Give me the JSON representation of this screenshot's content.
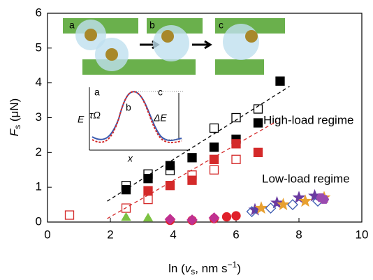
{
  "chart_data": {
    "type": "scatter",
    "xlabel": {
      "pre": "ln (",
      "v": "v",
      "sub": "s",
      "post": ", nm s",
      "sup": "−1",
      "end": ")"
    },
    "ylabel": {
      "f": "F",
      "sub": "s",
      "post": " (μN)"
    },
    "xlim": [
      0,
      10
    ],
    "xticks": [
      0,
      2,
      4,
      6,
      8,
      10
    ],
    "ylim": [
      0,
      6
    ],
    "yticks": [
      0,
      1,
      2,
      3,
      4,
      5,
      6
    ],
    "annotations": [
      "High-load regime",
      "Low-load regime"
    ],
    "cartoon_labels": [
      "a",
      "b",
      "c"
    ],
    "inset_labels": {
      "a": "a",
      "b": "b",
      "c": "c",
      "ylabel": "E",
      "xlabel": "x",
      "tau": "τΩ",
      "delta": "ΔE"
    },
    "series": [
      {
        "marker": "square",
        "filled": true,
        "color": "#000000",
        "x": [
          2.5,
          3.2,
          3.9,
          4.6,
          5.3,
          6.0,
          6.7,
          7.4
        ],
        "values": [
          0.93,
          1.25,
          1.62,
          1.85,
          2.15,
          2.38,
          2.85,
          4.05
        ]
      },
      {
        "marker": "square",
        "filled": false,
        "color": "#000000",
        "x": [
          2.5,
          3.2,
          3.9,
          5.3,
          6.0,
          6.7
        ],
        "values": [
          1.05,
          1.38,
          1.48,
          2.7,
          3.0,
          3.25
        ]
      },
      {
        "marker": "square",
        "filled": true,
        "color": "#d42a2a",
        "x": [
          3.2,
          3.9,
          4.6,
          5.3,
          6.0,
          6.7
        ],
        "values": [
          0.9,
          1.05,
          1.2,
          1.8,
          2.25,
          2.0
        ]
      },
      {
        "marker": "square",
        "filled": false,
        "color": "#d42a2a",
        "x": [
          0.7,
          2.5,
          3.2,
          4.6,
          5.3,
          6.0
        ],
        "values": [
          0.2,
          0.4,
          0.65,
          1.35,
          1.5,
          1.8
        ]
      },
      {
        "marker": "triangle",
        "filled": true,
        "color": "#7cc242",
        "x": [
          2.5,
          3.2
        ],
        "values": [
          0.12,
          0.1
        ]
      },
      {
        "marker": "circle",
        "filled": true,
        "color": "#e0202a",
        "x": [
          3.9,
          4.6,
          5.3,
          5.7,
          6.0
        ],
        "values": [
          0.05,
          0.05,
          0.1,
          0.15,
          0.18
        ]
      },
      {
        "marker": "diamond",
        "filled": true,
        "color": "#c03090",
        "x": [
          3.9,
          4.6,
          5.3
        ],
        "values": [
          0.08,
          0.06,
          0.12
        ]
      },
      {
        "marker": "star",
        "filled": true,
        "color": "#6a3aa0",
        "x": [
          6.6,
          7.3,
          8.0,
          8.5
        ],
        "values": [
          0.35,
          0.55,
          0.7,
          0.75
        ]
      },
      {
        "marker": "star",
        "filled": true,
        "color": "#e8a030",
        "x": [
          6.8,
          7.5,
          8.2,
          8.8
        ],
        "values": [
          0.4,
          0.5,
          0.6,
          0.7
        ]
      },
      {
        "marker": "diamond",
        "filled": false,
        "color": "#3a5ab0",
        "x": [
          6.5,
          7.1,
          7.8,
          8.6
        ],
        "values": [
          0.3,
          0.4,
          0.5,
          0.6
        ]
      },
      {
        "marker": "hexagon",
        "filled": true,
        "color": "#9a4ab0",
        "x": [
          8.7,
          8.8
        ],
        "values": [
          0.7,
          0.65
        ]
      }
    ],
    "fits": [
      {
        "color": "#000000",
        "x": [
          1.9,
          7.7
        ],
        "values": [
          0.6,
          3.9
        ]
      },
      {
        "color": "#d42a2a",
        "x": [
          1.9,
          7.3
        ],
        "values": [
          0.1,
          2.9
        ]
      }
    ]
  }
}
